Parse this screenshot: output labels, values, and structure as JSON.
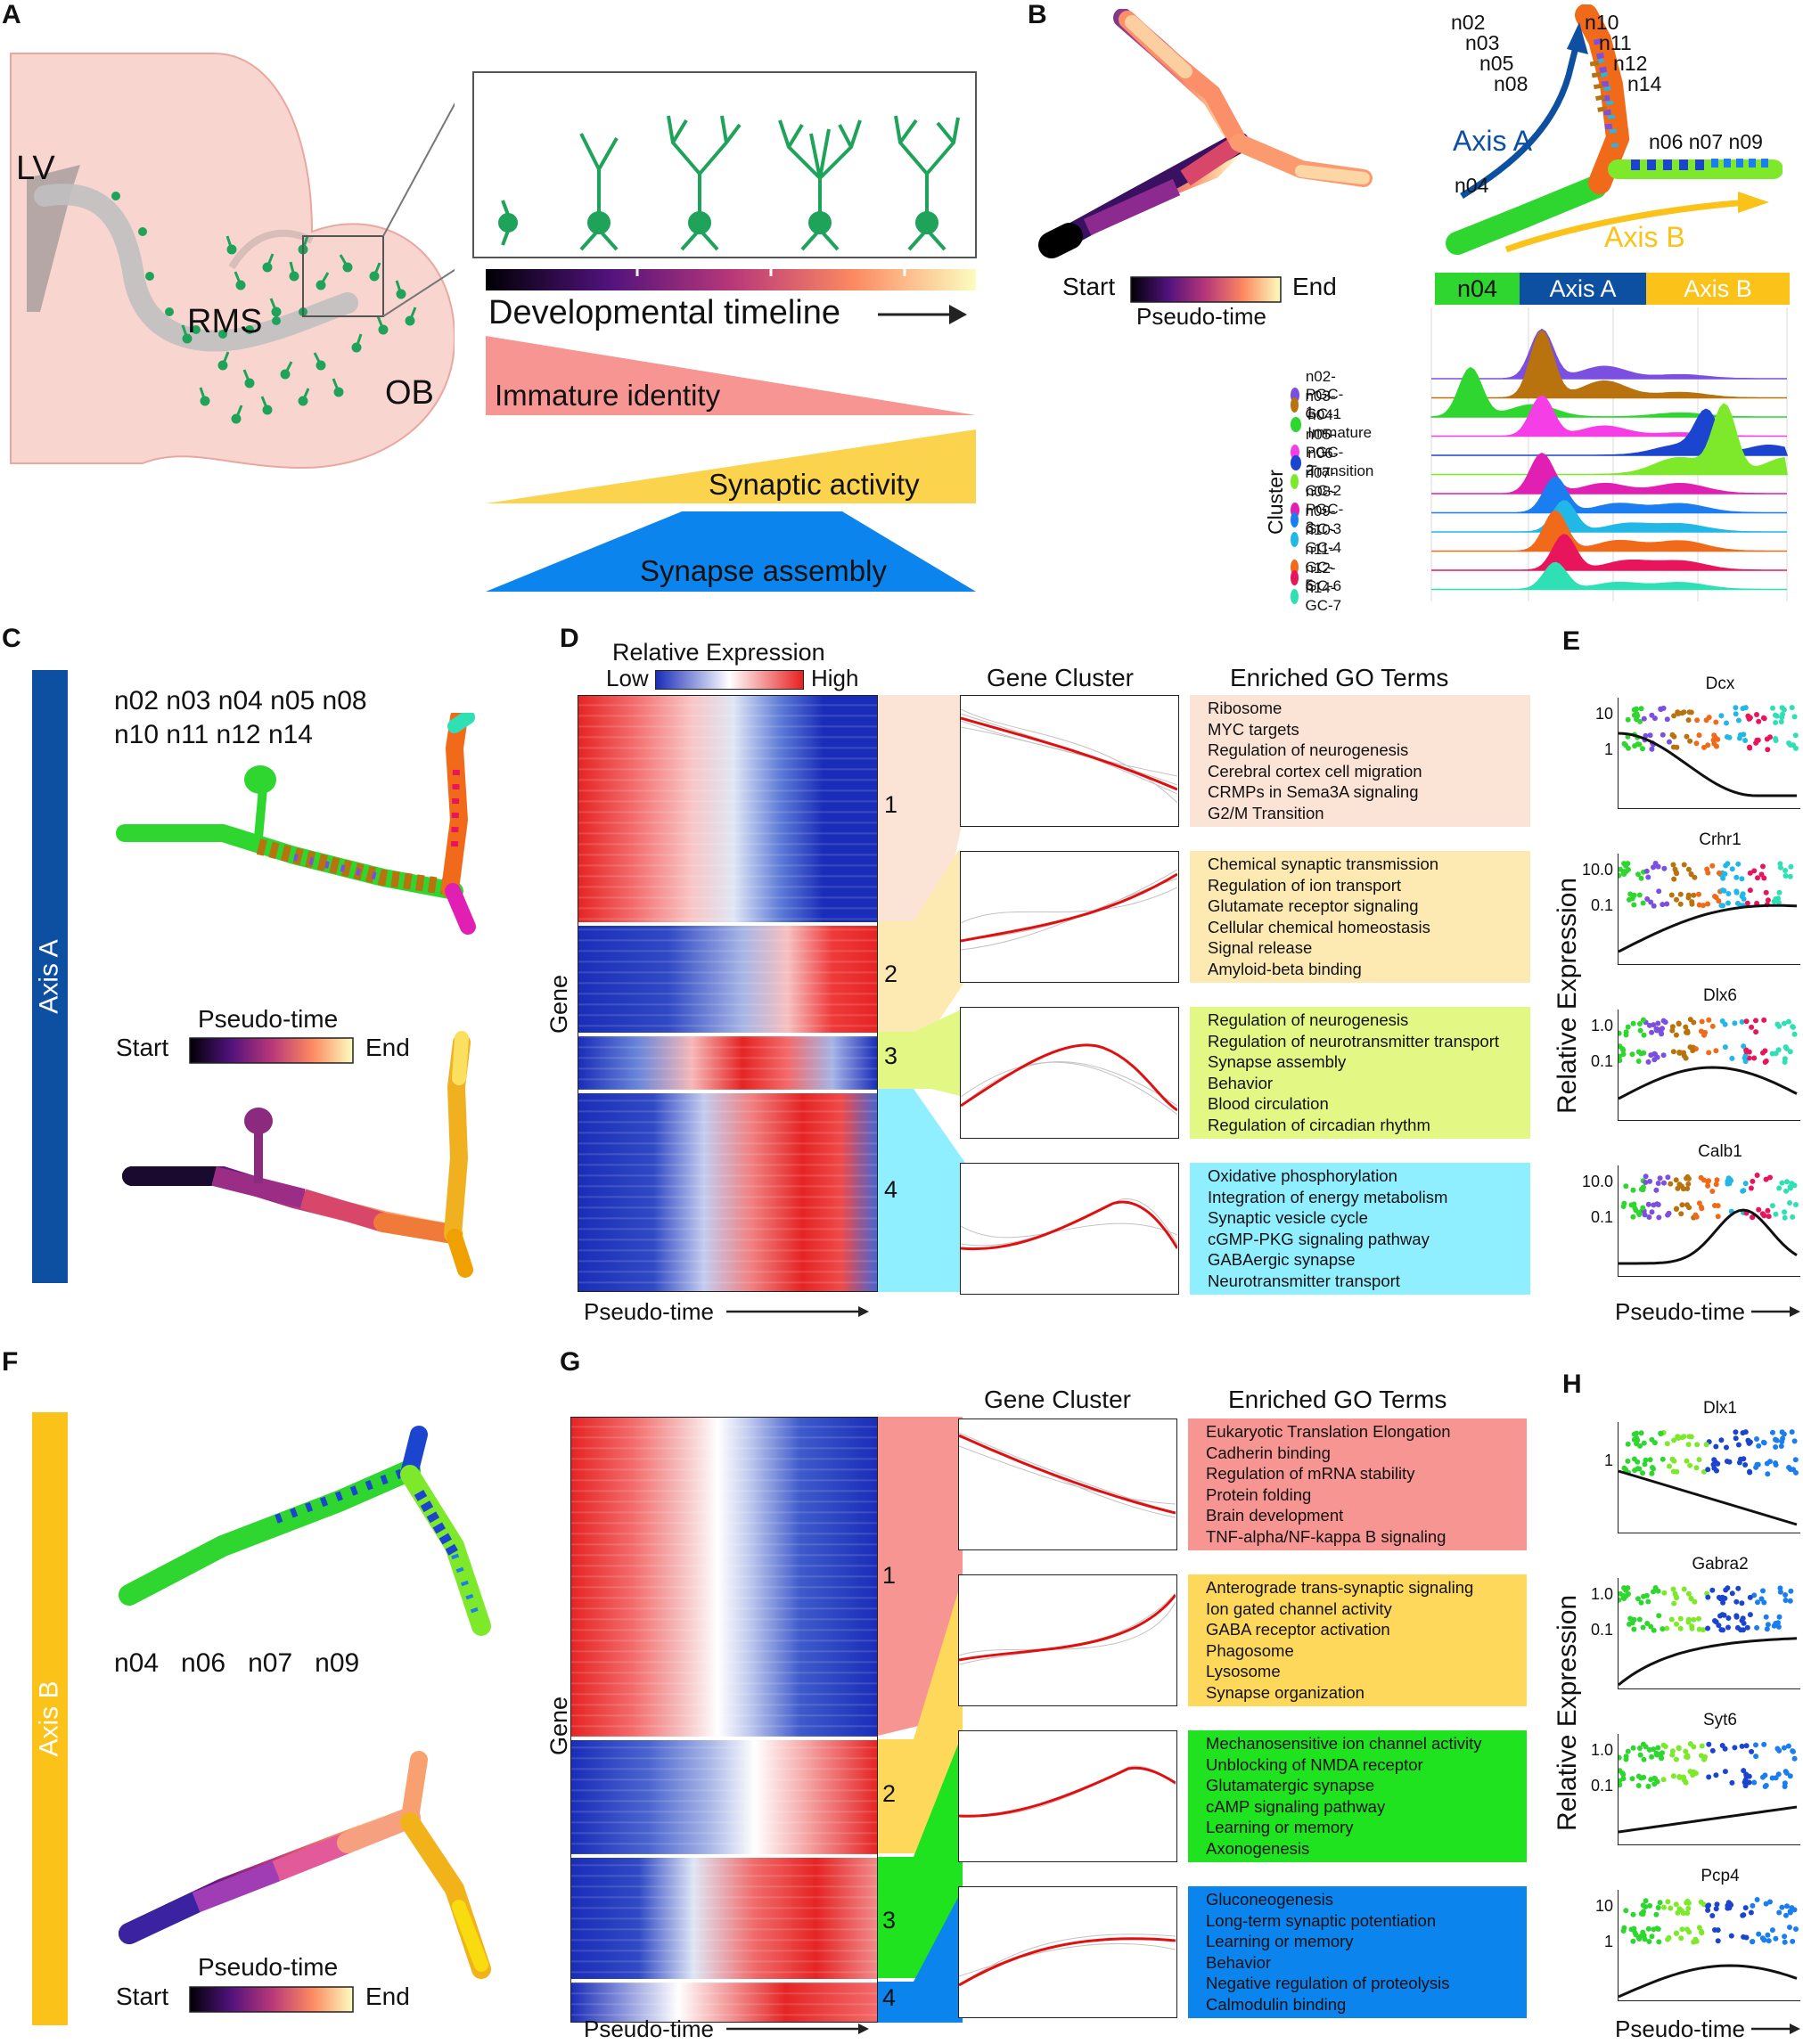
{
  "panels": {
    "a": "A",
    "b": "B",
    "c": "C",
    "d": "D",
    "e": "E",
    "f": "F",
    "g": "G",
    "h": "H"
  },
  "panel_a": {
    "labels": {
      "lv": "LV",
      "rms": "RMS",
      "ob": "OB"
    },
    "timeline": "Developmental timeline",
    "gradients": [
      "Immature identity",
      "Synaptic activity",
      "Synapse assembly"
    ],
    "colors": {
      "brain": "#f9d5cf",
      "neuron": "#1fa35b",
      "immature": "#f79593",
      "synaptic": "#fcd34d",
      "assembly": "#0b84ee"
    }
  },
  "panel_b": {
    "start": "Start",
    "end": "End",
    "pseudotime": "Pseudo-time",
    "axis_a": "Axis A",
    "axis_b": "Axis B",
    "cluster_labels_left": [
      "n02",
      "n03",
      "n05",
      "n08"
    ],
    "cluster_labels_right": [
      "n10",
      "n11",
      "n12",
      "n14"
    ],
    "cluster_labels_b": "n06 n07 n09",
    "n04": "n04",
    "bar": [
      "n04",
      "Axis A",
      "Axis B"
    ],
    "ylabel": "Cluster",
    "legend": [
      {
        "name": "n02-PGC-1",
        "color": "#7b4fe0"
      },
      {
        "name": "n03-GC-1",
        "color": "#b8720e"
      },
      {
        "name": "n04-Immature",
        "color": "#2fd62f"
      },
      {
        "name": "n05-PGC-2",
        "color": "#f53ee6"
      },
      {
        "name": "n06-Transition",
        "color": "#1b45cf"
      },
      {
        "name": "n07-GC-2",
        "color": "#7ee82a"
      },
      {
        "name": "n08-PGC-3",
        "color": "#e11fb2"
      },
      {
        "name": "n09-GC-3",
        "color": "#1a7ef0"
      },
      {
        "name": "n10-GC-4",
        "color": "#21b8e8"
      },
      {
        "name": "n11-GC-5",
        "color": "#f06a1a"
      },
      {
        "name": "n12-GC-6",
        "color": "#e8155c"
      },
      {
        "name": "n14-GC-7",
        "color": "#2ee0b4"
      }
    ]
  },
  "panel_c": {
    "axis": "Axis A",
    "clusters_line1": "n02  n03  n04  n05  n08",
    "clusters_line2": "n10  n11  n12  n14",
    "pseudotime": "Pseudo-time",
    "start": "Start",
    "end": "End"
  },
  "panel_d": {
    "rel_expr": "Relative Expression",
    "low": "Low",
    "high": "High",
    "gene": "Gene",
    "pseudotime": "Pseudo-time",
    "gene_cluster": "Gene Cluster",
    "go_terms": "Enriched GO Terms",
    "cluster_nums": [
      "1",
      "2",
      "3",
      "4"
    ],
    "go": [
      [
        "Ribosome",
        "MYC targets",
        "Regulation of neurogenesis",
        "Cerebral cortex cell migration",
        "CRMPs in Sema3A signaling",
        "G2/M Transition"
      ],
      [
        "Chemical synaptic transmission",
        "Regulation of ion transport",
        "Glutamate receptor signaling",
        "Cellular chemical homeostasis",
        "Signal release",
        "Amyloid-beta binding"
      ],
      [
        "Regulation of neurogenesis",
        "Regulation of neurotransmitter transport",
        "Synapse assembly",
        "Behavior",
        "Blood circulation",
        "Regulation of circadian rhythm"
      ],
      [
        "Oxidative phosphorylation",
        "Integration of energy metabolism",
        "Synaptic vesicle cycle",
        "cGMP-PKG signaling pathway",
        "GABAergic synapse",
        "Neurotransmitter transport"
      ]
    ],
    "go_colors": [
      "#fbe3d6",
      "#fdeab3",
      "#e2f784",
      "#8fefff"
    ]
  },
  "panel_e": {
    "ylabel": "Relative Expression",
    "xlabel": "Pseudo-time",
    "genes": [
      {
        "name": "Dcx",
        "ticks": [
          "10",
          "1"
        ]
      },
      {
        "name": "Crhr1",
        "ticks": [
          "10.0",
          "0.1"
        ]
      },
      {
        "name": "Dlx6",
        "ticks": [
          "1.0",
          "0.1"
        ]
      },
      {
        "name": "Calb1",
        "ticks": [
          "10.0",
          "0.1"
        ]
      }
    ]
  },
  "panel_f": {
    "axis": "Axis B",
    "clusters": "n04   n06   n07   n09",
    "pseudotime": "Pseudo-time",
    "start": "Start",
    "end": "End"
  },
  "panel_g": {
    "gene": "Gene",
    "pseudotime": "Pseudo-time",
    "gene_cluster": "Gene Cluster",
    "go_terms": "Enriched GO Terms",
    "cluster_nums": [
      "1",
      "2",
      "3",
      "4"
    ],
    "go": [
      [
        "Eukaryotic Translation Elongation",
        "Cadherin binding",
        "Regulation of mRNA stability",
        "Protein folding",
        "Brain development",
        "TNF-alpha/NF-kappa B signaling"
      ],
      [
        "Anterograde trans-synaptic signaling",
        "Ion gated channel activity",
        "GABA receptor activation",
        "Phagosome",
        "Lysosome",
        "Synapse organization"
      ],
      [
        "Mechanosensitive ion channel activity",
        "Unblocking of NMDA receptor",
        "Glutamatergic synapse",
        "cAMP signaling pathway",
        "Learning or memory",
        "Axonogenesis"
      ],
      [
        "Gluconeogenesis",
        "Long-term synaptic potentiation",
        "Learning or memory",
        "Behavior",
        "Negative regulation of proteolysis",
        "Calmodulin binding"
      ]
    ],
    "go_colors": [
      "#f79593",
      "#fdd85a",
      "#1fe31f",
      "#0b84ee"
    ]
  },
  "panel_h": {
    "ylabel": "Relative Expression",
    "xlabel": "Pseudo-time",
    "genes": [
      {
        "name": "Dlx1",
        "ticks": [
          "1"
        ]
      },
      {
        "name": "Gabra2",
        "ticks": [
          "1.0",
          "0.1"
        ]
      },
      {
        "name": "Syt6",
        "ticks": [
          "1.0",
          "0.1"
        ]
      },
      {
        "name": "Pcp4",
        "ticks": [
          "10",
          "1"
        ]
      }
    ]
  }
}
